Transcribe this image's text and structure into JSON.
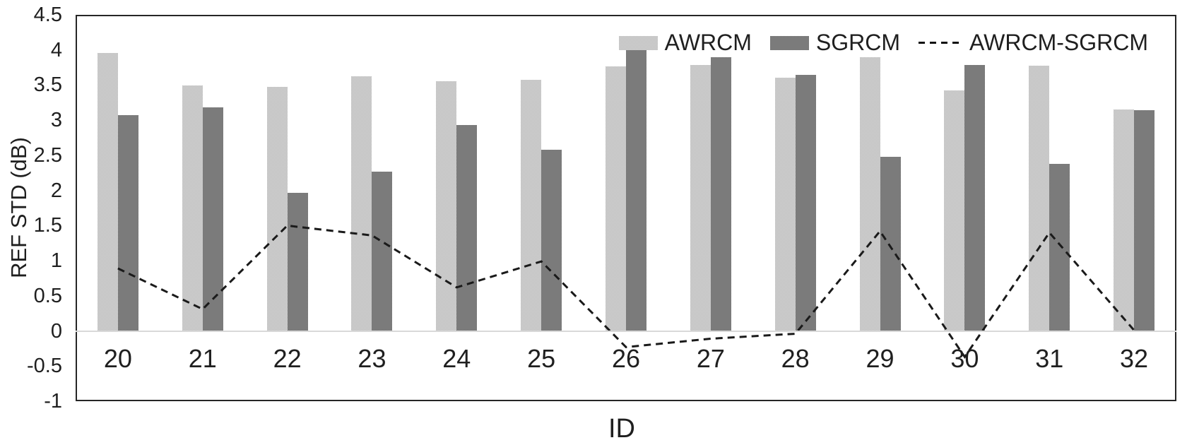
{
  "chart_data": {
    "type": "bar",
    "title": "",
    "xlabel": "ID",
    "ylabel": "REF STD (dB)",
    "ylim": [
      -1,
      4.5
    ],
    "ytick_step": 0.5,
    "y_tick_labels": [
      "4.5",
      "4",
      "3.5",
      "3",
      "2.5",
      "2",
      "1.5",
      "1",
      "0.5",
      "0",
      "-0.5",
      "-1"
    ],
    "grid": false,
    "legend_position": "top-right",
    "categories": [
      "20",
      "21",
      "22",
      "23",
      "24",
      "25",
      "26",
      "27",
      "28",
      "29",
      "30",
      "31",
      "32"
    ],
    "series": [
      {
        "name": "AWRCM",
        "type": "bar",
        "color": "#c8c8c8",
        "values": [
          3.96,
          3.49,
          3.47,
          3.63,
          3.55,
          3.57,
          3.77,
          3.79,
          3.61,
          3.9,
          3.42,
          3.78,
          3.15
        ]
      },
      {
        "name": "SGRCM",
        "type": "bar",
        "color": "#7a7a7a",
        "values": [
          3.07,
          3.18,
          1.97,
          2.27,
          2.93,
          2.58,
          4.0,
          3.9,
          3.65,
          2.48,
          3.79,
          2.38,
          3.14
        ]
      },
      {
        "name": "AWRCM-SGRCM",
        "type": "line",
        "line_style": "dashed",
        "color": "#1a1a1a",
        "values": [
          0.89,
          0.31,
          1.5,
          1.36,
          0.62,
          0.99,
          -0.23,
          -0.11,
          -0.04,
          1.42,
          -0.37,
          1.4,
          0.01
        ]
      }
    ]
  }
}
